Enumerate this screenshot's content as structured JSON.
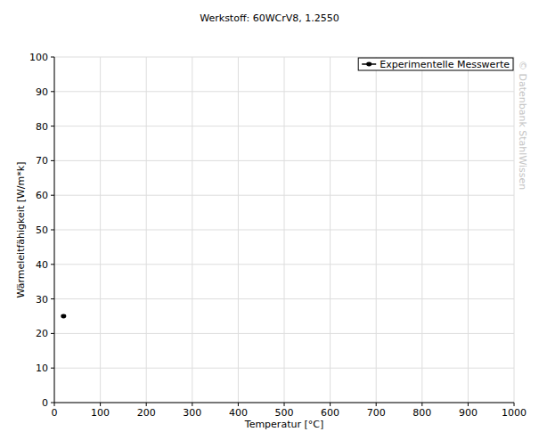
{
  "chart_data": {
    "type": "scatter",
    "title": "Werkstoff: 60WCrV8, 1.2550",
    "x_label": "Temperatur [°C]",
    "y_label": "Wärmeleitfähigkeit [W/m*k]",
    "annotations": [
      "© Datenbank StahlWissen"
    ],
    "x": [
      20
    ],
    "series": [
      {
        "name": "Experimentelle Messwerte",
        "color": "#000000",
        "values": [
          25
        ],
        "marker": "circle"
      }
    ],
    "xlim": [
      0,
      1000
    ],
    "xticks": [
      0,
      100,
      200,
      300,
      400,
      500,
      600,
      700,
      800,
      900,
      1000
    ],
    "ylim": [
      0,
      100
    ],
    "yticks": [
      0,
      10,
      20,
      30,
      40,
      50,
      60,
      70,
      80,
      90,
      100
    ],
    "grid": true,
    "legend": "top-right"
  }
}
